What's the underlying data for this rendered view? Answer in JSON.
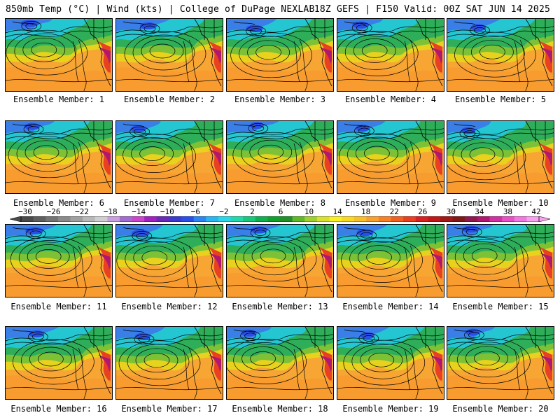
{
  "header": {
    "left": "850mb Temp (°C) | Wind (kts) | College of DuPage NEXLAB",
    "right": "18Z GEFS | F150 Valid: 00Z SAT JUN 14 2025"
  },
  "colorbar": {
    "labels": [
      "−30",
      "−26",
      "−22",
      "−18",
      "−14",
      "−10",
      "−6",
      "−2",
      "2",
      "6",
      "10",
      "14",
      "18",
      "22",
      "26",
      "30",
      "34",
      "38",
      "42"
    ],
    "colors": [
      "#4a4a4a",
      "#5f5f5f",
      "#747474",
      "#8a8a8a",
      "#a0a0a0",
      "#b8b8b8",
      "#cfcfcf",
      "#c8a0e0",
      "#a46ad0",
      "#cc44cc",
      "#a020c0",
      "#6a2ab8",
      "#3a3ad0",
      "#2850e8",
      "#2a86f0",
      "#2ab6f0",
      "#28d8e8",
      "#20d8a8",
      "#18c878",
      "#10b050",
      "#10a030",
      "#209028",
      "#60b828",
      "#a0d030",
      "#d8e030",
      "#f8f020",
      "#f8d820",
      "#f8c028",
      "#f8a030",
      "#f88028",
      "#f06020",
      "#e84020",
      "#d82020",
      "#c01818",
      "#a01818",
      "#801818",
      "#901850",
      "#b01870",
      "#d030a0",
      "#e850c8",
      "#f078e0",
      "#f8a0f0"
    ]
  },
  "panels": [
    {
      "label": "Ensemble Member: 1"
    },
    {
      "label": "Ensemble Member: 2"
    },
    {
      "label": "Ensemble Member: 3"
    },
    {
      "label": "Ensemble Member: 4"
    },
    {
      "label": "Ensemble Member: 5"
    },
    {
      "label": "Ensemble Member: 6"
    },
    {
      "label": "Ensemble Member: 7"
    },
    {
      "label": "Ensemble Member: 8"
    },
    {
      "label": "Ensemble Member: 9"
    },
    {
      "label": "Ensemble Member: 10"
    },
    {
      "label": "Ensemble Member: 11"
    },
    {
      "label": "Ensemble Member: 12"
    },
    {
      "label": "Ensemble Member: 13"
    },
    {
      "label": "Ensemble Member: 14"
    },
    {
      "label": "Ensemble Member: 15"
    },
    {
      "label": "Ensemble Member: 16"
    },
    {
      "label": "Ensemble Member: 17"
    },
    {
      "label": "Ensemble Member: 18"
    },
    {
      "label": "Ensemble Member: 19"
    },
    {
      "label": "Ensemble Member: 20"
    }
  ]
}
